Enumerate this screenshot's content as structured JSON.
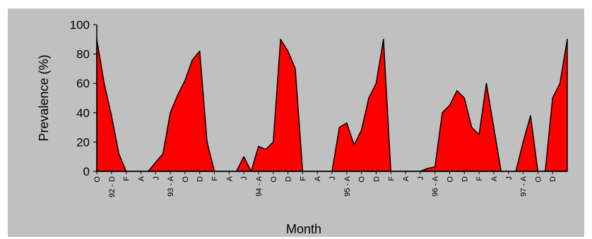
{
  "chart_data": {
    "type": "area",
    "xlabel": "Month",
    "ylabel": "Prevalence (%)",
    "ylim": [
      0,
      100
    ],
    "yticks": [
      0,
      20,
      40,
      60,
      80,
      100
    ],
    "grid": false,
    "legend": "none",
    "colors": {
      "fill": "#ff0000",
      "stroke": "#000000",
      "plot_background": "#c0c0c0",
      "page_background": "#ffffff"
    },
    "x_tick_labels": [
      "O",
      "92 - D",
      "F",
      "A",
      "J",
      "93 - A",
      "O",
      "D",
      "F",
      "A",
      "J",
      "94 - A",
      "O",
      "D",
      "F",
      "A",
      "J",
      "95 - A",
      "O",
      "D",
      "F",
      "A",
      "J",
      "96 - A",
      "O",
      "D",
      "F",
      "A",
      "J",
      "97 - A",
      "O",
      "D"
    ],
    "series": [
      {
        "values": [
          90,
          60,
          38,
          12,
          0,
          0,
          0,
          0,
          6,
          12,
          40,
          52,
          62,
          76,
          82,
          20,
          0,
          0,
          0,
          0,
          10,
          0,
          17,
          15,
          20,
          90,
          82,
          70,
          0,
          0,
          0,
          0,
          0,
          30,
          33,
          18,
          28,
          50,
          60,
          90,
          0,
          0,
          0,
          0,
          0,
          2,
          3,
          40,
          45,
          55,
          50,
          30,
          25,
          60,
          30,
          0,
          0,
          0,
          20,
          38,
          0,
          0,
          50,
          60,
          90
        ]
      }
    ]
  }
}
